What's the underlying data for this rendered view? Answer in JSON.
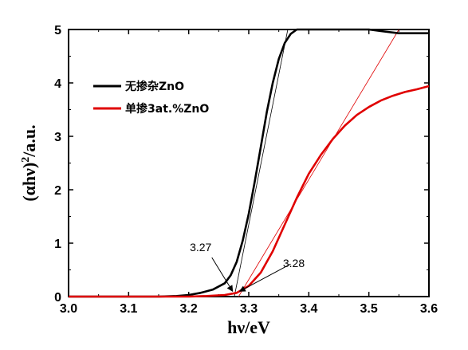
{
  "chart_data": {
    "type": "line",
    "xlabel": "hν/eV",
    "ylabel_main": "(αhν)",
    "ylabel_sup": "2",
    "ylabel_tail": "/a.u.",
    "xlim": [
      3.0,
      3.6
    ],
    "ylim": [
      0,
      5
    ],
    "x_ticks": [
      "3.0",
      "3.1",
      "3.2",
      "3.3",
      "3.4",
      "3.5",
      "3.6"
    ],
    "y_ticks": [
      "0",
      "1",
      "2",
      "3",
      "4",
      "5"
    ],
    "grid": false,
    "legend_position": "upper-left",
    "series": [
      {
        "name": "无掺杂ZnO",
        "color": "#000000",
        "points": [
          [
            3.0,
            0.0
          ],
          [
            3.15,
            0.0
          ],
          [
            3.18,
            0.01
          ],
          [
            3.2,
            0.03
          ],
          [
            3.22,
            0.07
          ],
          [
            3.24,
            0.13
          ],
          [
            3.26,
            0.25
          ],
          [
            3.27,
            0.4
          ],
          [
            3.28,
            0.65
          ],
          [
            3.29,
            1.05
          ],
          [
            3.3,
            1.55
          ],
          [
            3.31,
            2.15
          ],
          [
            3.32,
            2.8
          ],
          [
            3.33,
            3.45
          ],
          [
            3.34,
            4.0
          ],
          [
            3.35,
            4.45
          ],
          [
            3.36,
            4.75
          ],
          [
            3.37,
            4.92
          ],
          [
            3.38,
            5.0
          ],
          [
            3.45,
            5.0
          ],
          [
            3.5,
            5.0
          ],
          [
            3.52,
            4.97
          ],
          [
            3.55,
            4.93
          ],
          [
            3.6,
            4.93
          ]
        ]
      },
      {
        "name": "单掺3at.%ZnO",
        "color": "#e00000",
        "points": [
          [
            3.0,
            0.0
          ],
          [
            3.2,
            0.0
          ],
          [
            3.23,
            0.01
          ],
          [
            3.26,
            0.03
          ],
          [
            3.28,
            0.07
          ],
          [
            3.3,
            0.2
          ],
          [
            3.32,
            0.45
          ],
          [
            3.34,
            0.85
          ],
          [
            3.36,
            1.35
          ],
          [
            3.38,
            1.85
          ],
          [
            3.4,
            2.3
          ],
          [
            3.42,
            2.65
          ],
          [
            3.44,
            2.95
          ],
          [
            3.46,
            3.2
          ],
          [
            3.48,
            3.4
          ],
          [
            3.5,
            3.55
          ],
          [
            3.52,
            3.67
          ],
          [
            3.54,
            3.76
          ],
          [
            3.56,
            3.83
          ],
          [
            3.58,
            3.88
          ],
          [
            3.6,
            3.94
          ]
        ]
      }
    ],
    "tangents": [
      {
        "color": "#000000",
        "from": [
          3.276,
          0.0
        ],
        "to": [
          3.365,
          5.0
        ]
      },
      {
        "color": "#e00000",
        "from": [
          3.283,
          0.0
        ],
        "to": [
          3.55,
          5.0
        ]
      }
    ],
    "annotations": [
      {
        "text": "3.27",
        "arrow_tip": [
          3.273,
          0.1
        ],
        "label_at": [
          3.22,
          0.85
        ]
      },
      {
        "text": "3.28",
        "arrow_tip": [
          3.285,
          0.1
        ],
        "label_at": [
          3.375,
          0.55
        ]
      }
    ]
  }
}
